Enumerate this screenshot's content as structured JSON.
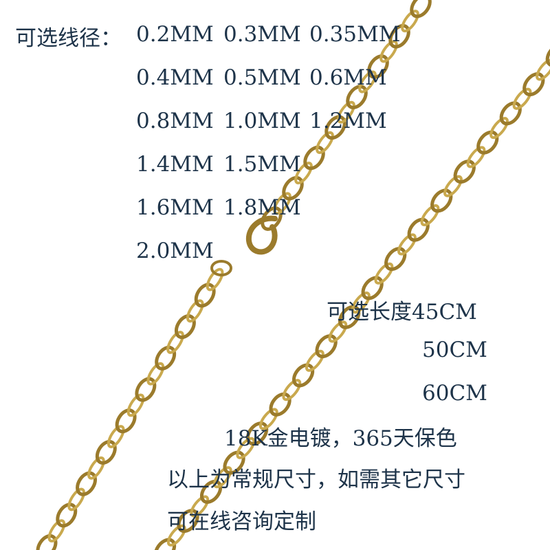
{
  "colors": {
    "text": "#1d3349",
    "chain_gold": "#9b7b2c",
    "chain_highlight": "#c9a94e",
    "background": "#ffffff"
  },
  "wire_diameter": {
    "label": "可选线径：",
    "rows": [
      [
        "0.2MM",
        "0.3MM",
        "0.35MM"
      ],
      [
        "0.4MM",
        "0.5MM",
        "0.6MM"
      ],
      [
        "0.8MM",
        "1.0MM",
        "1.2MM"
      ],
      [
        "1.4MM",
        "1.5MM"
      ],
      [
        "1.6MM",
        "1.8MM"
      ],
      [
        "2.0MM"
      ]
    ]
  },
  "length": {
    "label": "可选长度",
    "options": [
      "45CM",
      "50CM",
      "60CM"
    ]
  },
  "plating": "18K金电镀，365天保色",
  "note_line1": "以上为常规尺寸，如需其它尺寸",
  "note_line2": "可在线咨询定制"
}
